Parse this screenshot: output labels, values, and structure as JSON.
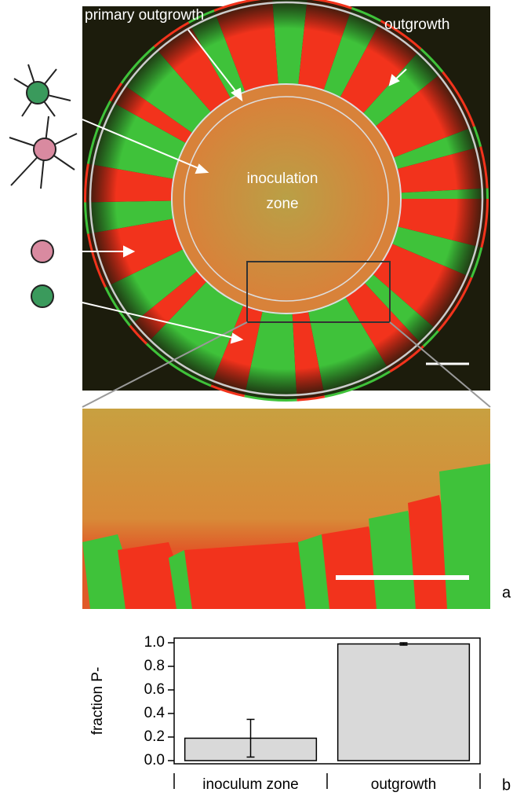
{
  "image_labels": {
    "primary": "primary outgrowth",
    "outgrowth": "outgrowth",
    "inoculation": "inoculation",
    "zone": "zone"
  },
  "panel_labels": [
    "a",
    "b"
  ],
  "chart_data": {
    "type": "bar",
    "y_label": "fraction P-",
    "categories": [
      "inoculum zone",
      "outgrowth"
    ],
    "values": [
      0.19,
      0.99
    ],
    "errors": [
      0.16,
      0.01
    ],
    "color": "#d9d9d9",
    "ylim": [
      -0.027,
      1.04
    ],
    "yticks": [
      {
        "value": 0,
        "label": "0.0"
      },
      0.2,
      0.4,
      0.6,
      0.8,
      {
        "value": 1,
        "label": "1.0"
      }
    ]
  }
}
